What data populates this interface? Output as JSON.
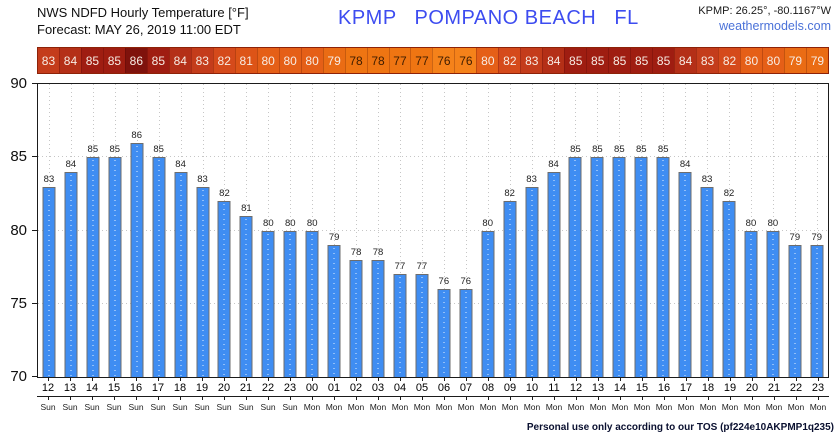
{
  "header": {
    "title_line1": "NWS NDFD Hourly Temperature [°F]",
    "title_line2": "Forecast: MAY 26, 2019 11:00 EDT",
    "station_title": "KPMP   POMPANO BEACH   FL",
    "coords": "KPMP: 26.25°, -80.1167°W",
    "website": "weathermodels.com"
  },
  "footer": {
    "tos": "Personal use only according to our TOS (pf224e10AKPMP1q235)"
  },
  "chart_data": {
    "type": "bar",
    "title": "NWS NDFD Hourly Temperature [°F]",
    "subtitle": "Forecast: MAY 26, 2019 11:00 EDT",
    "station": "KPMP POMPANO BEACH FL",
    "x_hours": [
      "12",
      "13",
      "14",
      "15",
      "16",
      "17",
      "18",
      "19",
      "20",
      "21",
      "22",
      "23",
      "00",
      "01",
      "02",
      "03",
      "04",
      "05",
      "06",
      "07",
      "08",
      "09",
      "10",
      "11",
      "12",
      "13",
      "14",
      "15",
      "16",
      "17",
      "18",
      "19",
      "20",
      "21",
      "22",
      "23"
    ],
    "x_days": [
      "Sun",
      "Sun",
      "Sun",
      "Sun",
      "Sun",
      "Sun",
      "Sun",
      "Sun",
      "Sun",
      "Sun",
      "Sun",
      "Sun",
      "Mon",
      "Mon",
      "Mon",
      "Mon",
      "Mon",
      "Mon",
      "Mon",
      "Mon",
      "Mon",
      "Mon",
      "Mon",
      "Mon",
      "Mon",
      "Mon",
      "Mon",
      "Mon",
      "Mon",
      "Mon",
      "Mon",
      "Mon",
      "Mon",
      "Mon",
      "Mon",
      "Mon"
    ],
    "values": [
      83,
      84,
      85,
      85,
      86,
      85,
      84,
      83,
      82,
      81,
      80,
      80,
      80,
      79,
      78,
      78,
      77,
      77,
      76,
      76,
      80,
      82,
      83,
      84,
      85,
      85,
      85,
      85,
      85,
      84,
      83,
      82,
      80,
      80,
      79,
      79
    ],
    "ylim": [
      70,
      90
    ],
    "yticks": [
      70,
      75,
      80,
      85,
      90
    ],
    "hgridlines": [
      75,
      80,
      85
    ],
    "grid_on": true,
    "legend": "none",
    "bar_color": "#3f8df2",
    "bar_border_color": "#6d6d6d",
    "bar_dot_color": "rgba(255,255,255,0.85)",
    "value_label_color": "#222222",
    "strip": {
      "color_scale": {
        "76": "#f5821a",
        "77": "#ef7512",
        "78": "#ef7512",
        "79": "#ea6c14",
        "80": "#e55f17",
        "81": "#dd5417",
        "82": "#d54a1b",
        "83": "#c43c1b",
        "84": "#b42f17",
        "85": "#9f1d11",
        "86": "#7f120c"
      },
      "dark_text_max": 78,
      "dark_text_color": "#3f1d00",
      "light_text_color": "#f7ece4"
    }
  }
}
